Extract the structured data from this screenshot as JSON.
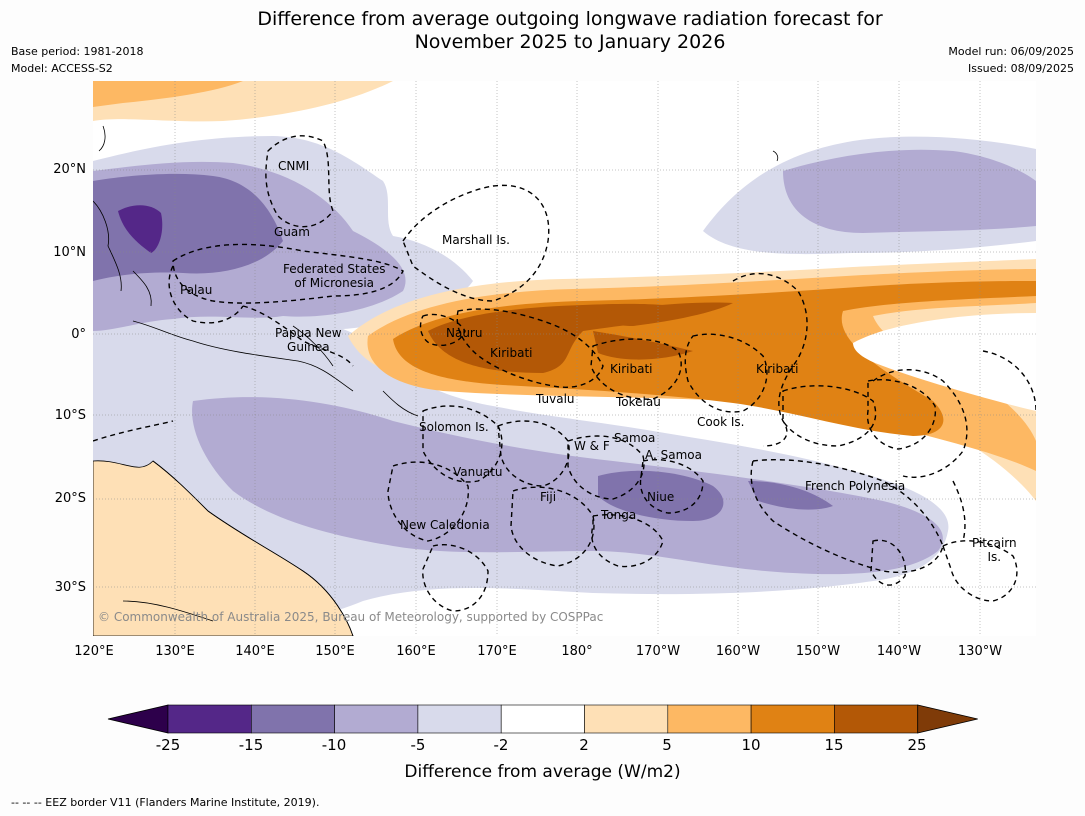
{
  "title_line1": "Difference from average outgoing longwave radiation forecast for",
  "title_line2": "November 2025 to January 2026",
  "base_period": "Base period: 1981-2018",
  "model": "Model: ACCESS-S2",
  "model_run": "Model run: 06/09/2025",
  "issued": "Issued: 08/09/2025",
  "latitude_labels": [
    "20°N",
    "10°N",
    "0°",
    "10°S",
    "20°S",
    "30°S"
  ],
  "longitude_labels": [
    "120°E",
    "130°E",
    "140°E",
    "150°E",
    "160°E",
    "170°E",
    "180°",
    "170°W",
    "160°W",
    "150°W",
    "140°W",
    "130°W"
  ],
  "places": {
    "cnmi": "CNMI",
    "guam": "Guam",
    "marshall": "Marshall Is.",
    "fsm_line1": "Federated States",
    "fsm_line2": "of Micronesia",
    "palau": "Palau",
    "png_line1": "Papua New",
    "png_line2": "Guinea",
    "nauru": "Nauru",
    "kiribati_w": "Kiribati",
    "kiribati_c": "Kiribati",
    "kiribati_e": "Kiribati",
    "tuvalu": "Tuvalu",
    "tokelau": "Tokelau",
    "cook": "Cook Is.",
    "solomon": "Solomon Is.",
    "samoa": "Samoa",
    "wf": "W & F",
    "asamoa": "A. Samoa",
    "vanuatu": "Vanuatu",
    "fiji": "Fiji",
    "niue": "Niue",
    "tonga": "Tonga",
    "newcal": "New Caledonia",
    "frenchpoly": "French Polynesia",
    "pitcairn_line1": "Pitcairn",
    "pitcairn_line2": "Is."
  },
  "copyright": "© Commonwealth of Australia 2025, Bureau of Meteorology, supported by COSPPac",
  "colorbar": {
    "ticks": [
      "-25",
      "-15",
      "-10",
      "-5",
      "-2",
      "2",
      "5",
      "10",
      "15",
      "25"
    ],
    "colors": [
      "#2d004b",
      "#542788",
      "#8073ac",
      "#b2abd2",
      "#d8daeb",
      "#ffffff",
      "#fee0b6",
      "#fdb863",
      "#e08214",
      "#b35806",
      "#7f3b08"
    ],
    "title": "Difference from average (W/m2)"
  },
  "footnote": "--  --  -- EEZ border V11 (Flanders Marine Institute, 2019)."
}
